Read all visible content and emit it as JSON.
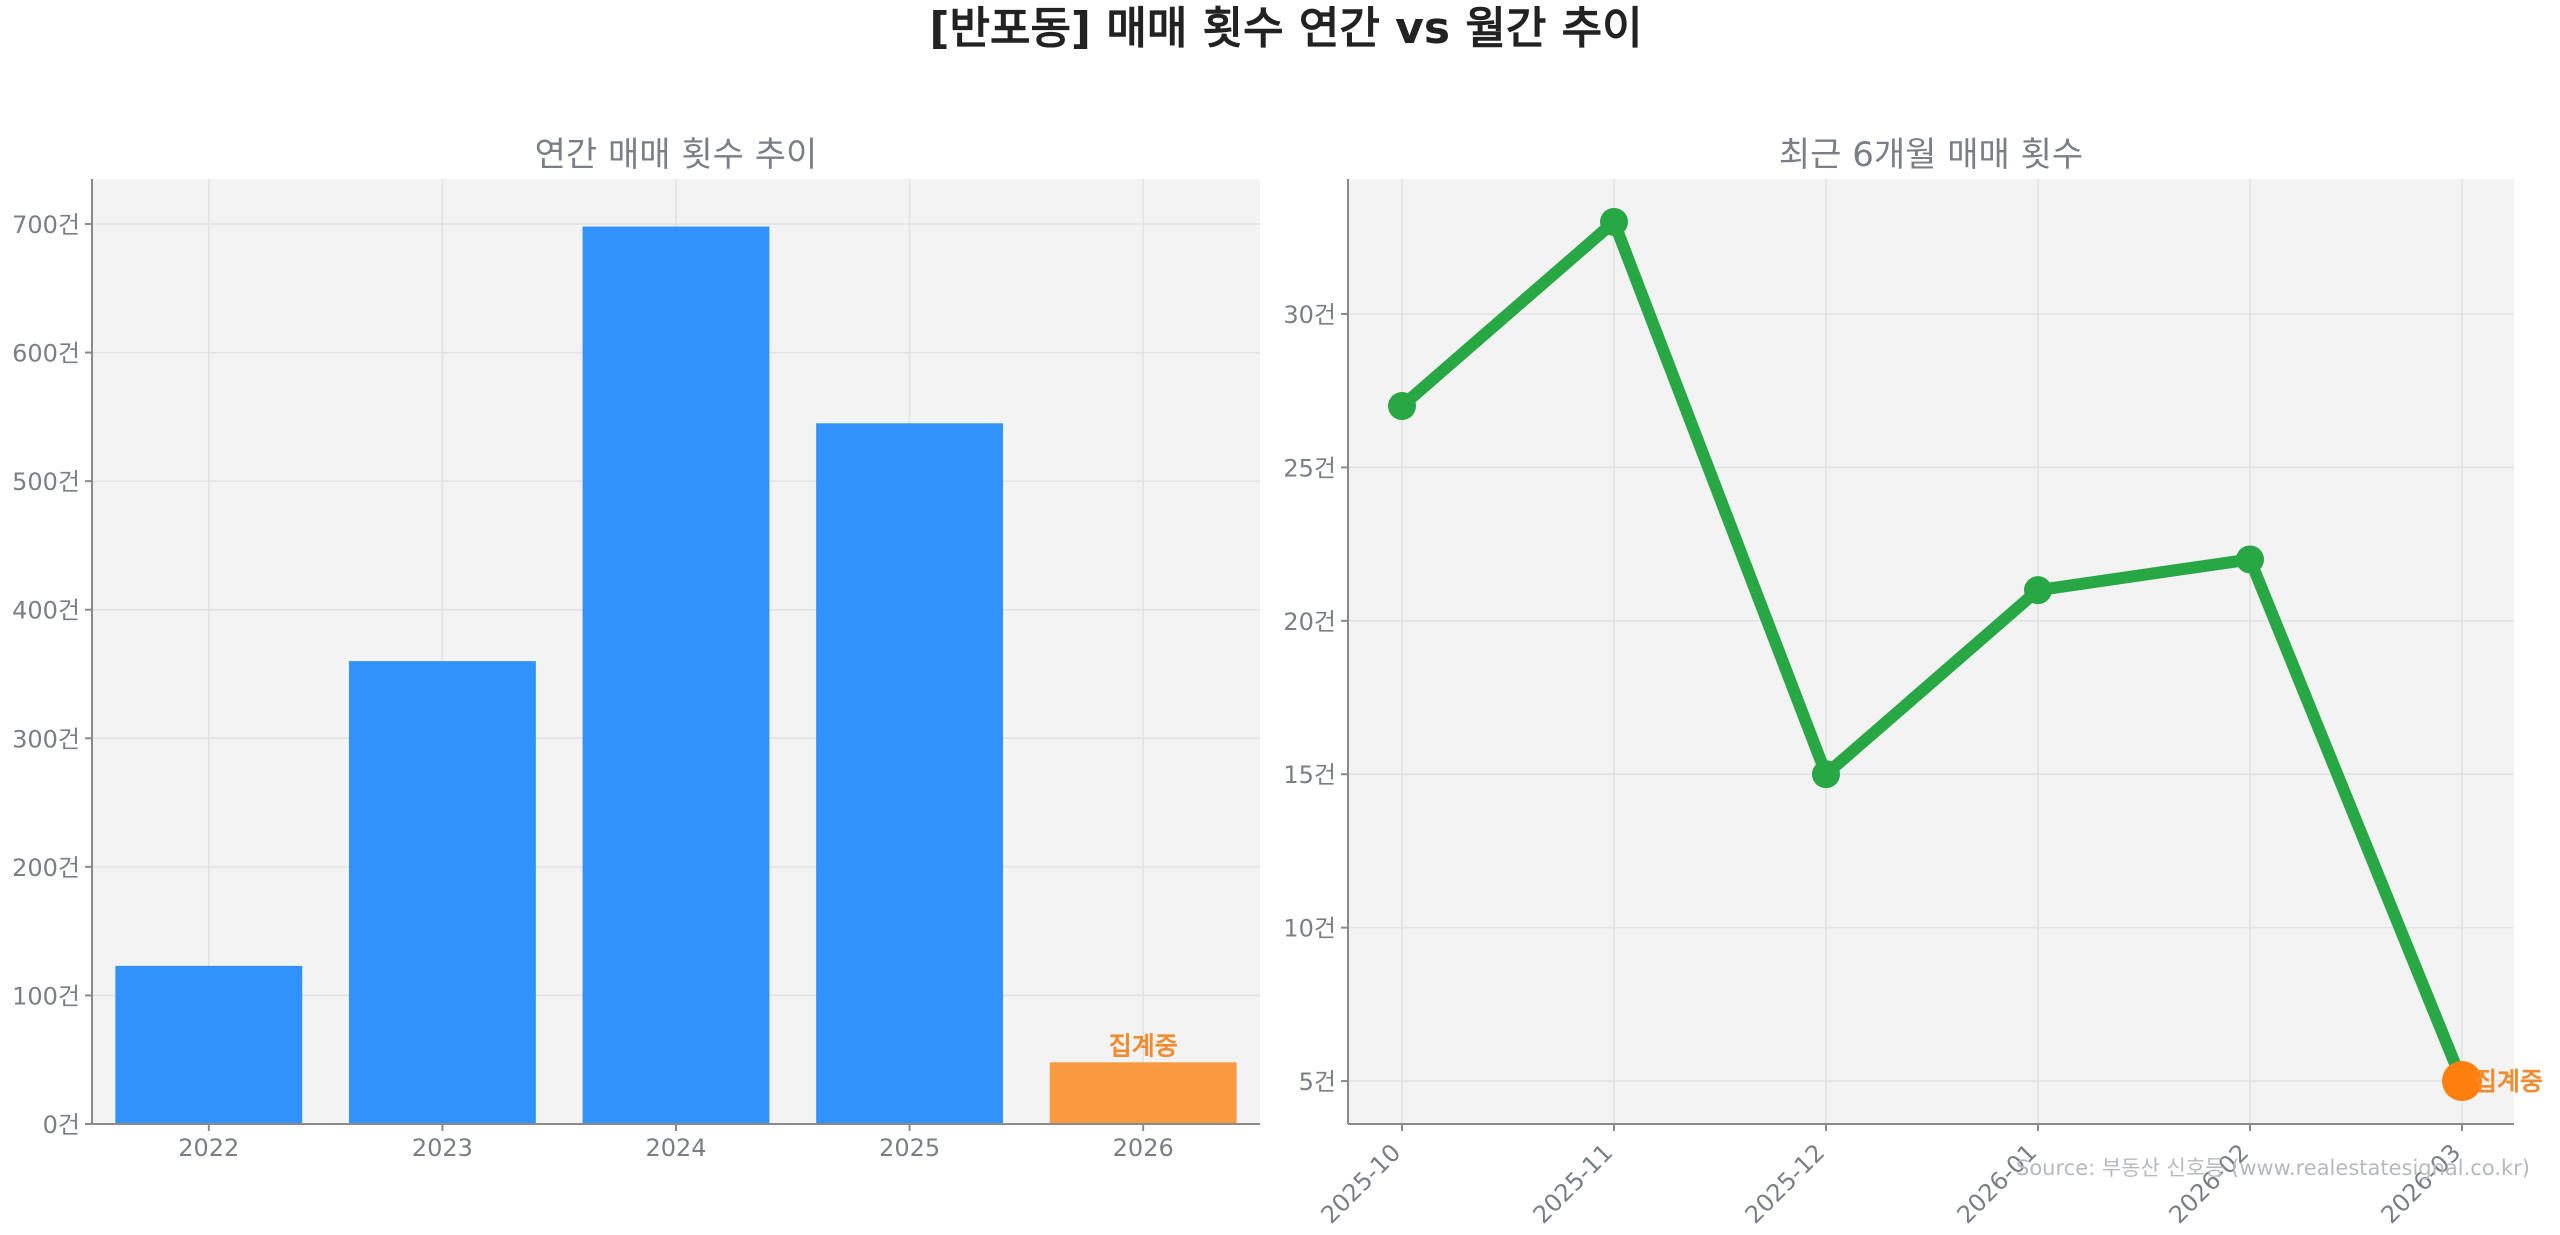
{
  "title": "[반포동] 매매 횟수 연간 vs 월간 추이",
  "source": "Source: 부동산 신호등 (www.realestatesignal.co.kr)",
  "colors": {
    "bar": "#3192fb",
    "bar_highlight": "#f99a41",
    "line": "#28a745",
    "line_highlight": "#ff7f0e",
    "annotation": "#f28a2e",
    "plot_bg": "#f3f3f3"
  },
  "chart_data": [
    {
      "type": "bar",
      "title": "연간 매매 횟수 추이",
      "categories": [
        "2022",
        "2023",
        "2024",
        "2025",
        "2026"
      ],
      "values": [
        123,
        360,
        698,
        545,
        48
      ],
      "highlight_index": 4,
      "annotation": "집계중",
      "ylim": [
        0,
        735
      ],
      "yticks": [
        0,
        100,
        200,
        300,
        400,
        500,
        600,
        700
      ],
      "tick_suffix": "건",
      "grid": true,
      "xlabel": "",
      "ylabel": ""
    },
    {
      "type": "line",
      "title": "최근 6개월 매매 횟수",
      "categories": [
        "2025-10",
        "2025-11",
        "2025-12",
        "2026-01",
        "2026-02",
        "2026-03"
      ],
      "values": [
        27,
        33,
        15,
        21,
        22,
        5
      ],
      "highlight_index": 5,
      "annotation": "집계중",
      "ylim": [
        3.6,
        34.4
      ],
      "yticks": [
        5,
        10,
        15,
        20,
        25,
        30
      ],
      "tick_suffix": "건",
      "grid": true,
      "xlabel": "",
      "ylabel": ""
    }
  ]
}
